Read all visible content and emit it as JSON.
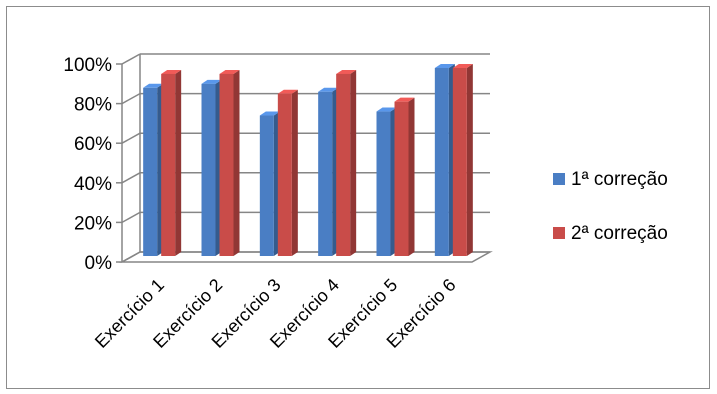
{
  "chart_data": {
    "type": "bar",
    "style": "3d-clustered-column",
    "categories": [
      "Exercício 1",
      "Exercício 2",
      "Exercício 3",
      "Exercício 4",
      "Exercício 5",
      "Exercício 6"
    ],
    "series": [
      {
        "name": "1ª correção",
        "values": [
          0.9,
          0.92,
          0.76,
          0.88,
          0.78,
          1.0
        ],
        "color": "#4a7ec4"
      },
      {
        "name": "2ª correção",
        "values": [
          0.97,
          0.97,
          0.87,
          0.97,
          0.83,
          1.0
        ],
        "color": "#c94c49"
      }
    ],
    "ylim": [
      0,
      1
    ],
    "yticks": [
      "0%",
      "20%",
      "40%",
      "60%",
      "80%",
      "100%"
    ],
    "grid": true,
    "legend_position": "right"
  }
}
